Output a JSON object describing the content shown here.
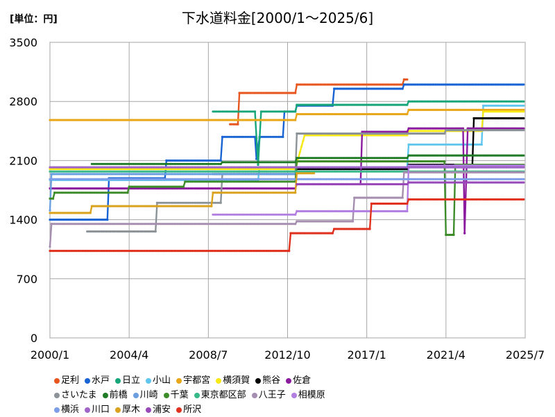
{
  "unit_label": "[単位：円]",
  "chart_data": {
    "type": "line",
    "title": "下水道料金[2000/1～2025/6]",
    "xlabel": "",
    "ylabel": "",
    "ylim": [
      0,
      3500
    ],
    "yticks": [
      0,
      700,
      1400,
      2100,
      2800,
      3500
    ],
    "xlim": [
      "2000/1",
      "2025/7"
    ],
    "xticks": [
      "2000/1",
      "2004/4",
      "2008/7",
      "2012/10",
      "2017/1",
      "2021/4",
      "2025/7"
    ],
    "grid": true,
    "legend_position": "bottom",
    "series": [
      {
        "name": "足利",
        "color": "#e8561f",
        "points": [
          [
            "2009/9",
            2530
          ],
          [
            "2010/2",
            2530
          ],
          [
            "2010/3",
            2900
          ],
          [
            "2013/3",
            2900
          ],
          [
            "2013/4",
            3000
          ],
          [
            "2018/12",
            3000
          ],
          [
            "2019/1",
            3060
          ],
          [
            "2019/3",
            3060
          ]
        ]
      },
      {
        "name": "水戸",
        "color": "#1763d4",
        "points": [
          [
            "2000/1",
            1400
          ],
          [
            "2003/2",
            1400
          ],
          [
            "2003/3",
            1890
          ],
          [
            "2006/3",
            1890
          ],
          [
            "2006/4",
            2100
          ],
          [
            "2009/3",
            2100
          ],
          [
            "2009/4",
            2380
          ],
          [
            "2011/1",
            2380
          ],
          [
            "2011/2",
            2120
          ],
          [
            "2011/4",
            2380
          ],
          [
            "2012/7",
            2380
          ],
          [
            "2012/8",
            2680
          ],
          [
            "2013/3",
            2680
          ],
          [
            "2013/4",
            2750
          ],
          [
            "2015/3",
            2750
          ],
          [
            "2015/4",
            2950
          ],
          [
            "2018/12",
            2950
          ],
          [
            "2019/1",
            3000
          ],
          [
            "2025/6",
            3000
          ]
        ]
      },
      {
        "name": "日立",
        "color": "#17a57a",
        "points": [
          [
            "2008/10",
            2680
          ],
          [
            "2011/1",
            2680
          ],
          [
            "2011/3",
            2050
          ],
          [
            "2011/5",
            2680
          ],
          [
            "2013/3",
            2680
          ],
          [
            "2013/4",
            2760
          ],
          [
            "2019/3",
            2760
          ],
          [
            "2019/4",
            2800
          ],
          [
            "2025/6",
            2800
          ]
        ]
      },
      {
        "name": "小山",
        "color": "#5ec5ef",
        "points": [
          [
            "2000/1",
            1870
          ],
          [
            "2011/3",
            1870
          ],
          [
            "2011/4",
            2020
          ],
          [
            "2019/3",
            2020
          ],
          [
            "2019/4",
            2290
          ],
          [
            "2023/3",
            2290
          ],
          [
            "2023/4",
            2750
          ],
          [
            "2025/6",
            2750
          ]
        ]
      },
      {
        "name": "宇都宮",
        "color": "#e8a619",
        "points": [
          [
            "2000/1",
            2580
          ],
          [
            "2013/3",
            2580
          ],
          [
            "2013/4",
            2650
          ],
          [
            "2019/3",
            2650
          ],
          [
            "2019/4",
            2700
          ],
          [
            "2025/6",
            2700
          ]
        ]
      },
      {
        "name": "横須賀",
        "color": "#f7e816",
        "points": [
          [
            "2000/1",
            2000
          ],
          [
            "2013/3",
            2000
          ],
          [
            "2013/9",
            2400
          ],
          [
            "2019/3",
            2400
          ],
          [
            "2019/4",
            2450
          ],
          [
            "2023/3",
            2450
          ],
          [
            "2023/4",
            2680
          ],
          [
            "2025/6",
            2680
          ]
        ]
      },
      {
        "name": "熊谷",
        "color": "#000000",
        "points": [
          [
            "2008/10",
            1940
          ],
          [
            "2013/3",
            1940
          ],
          [
            "2013/4",
            2000
          ],
          [
            "2019/3",
            2000
          ],
          [
            "2019/4",
            2050
          ],
          [
            "2022/9",
            2050
          ],
          [
            "2022/10",
            2600
          ],
          [
            "2025/6",
            2600
          ]
        ]
      },
      {
        "name": "佐倉",
        "color": "#8b1a9e",
        "points": [
          [
            "2000/1",
            1770
          ],
          [
            "2013/3",
            1770
          ],
          [
            "2013/4",
            1820
          ],
          [
            "2016/9",
            1820
          ],
          [
            "2016/10",
            2440
          ],
          [
            "2019/3",
            2440
          ],
          [
            "2019/4",
            2480
          ],
          [
            "2022/3",
            2480
          ],
          [
            "2022/4",
            1240
          ],
          [
            "2022/6",
            2480
          ],
          [
            "2025/6",
            2480
          ]
        ]
      },
      {
        "name": "さいたま",
        "color": "#8c9398",
        "points": [
          [
            "2002/1",
            1260
          ],
          [
            "2005/9",
            1260
          ],
          [
            "2005/10",
            1600
          ],
          [
            "2009/3",
            1600
          ],
          [
            "2009/4",
            1940
          ],
          [
            "2013/3",
            1940
          ],
          [
            "2013/4",
            2420
          ],
          [
            "2021/3",
            2420
          ],
          [
            "2021/4",
            2460
          ],
          [
            "2025/6",
            2460
          ]
        ]
      },
      {
        "name": "前橋",
        "color": "#1e7a24",
        "points": [
          [
            "2002/4",
            2060
          ],
          [
            "2009/3",
            2060
          ],
          [
            "2009/4",
            2080
          ],
          [
            "2013/3",
            2080
          ],
          [
            "2013/4",
            2130
          ],
          [
            "2019/3",
            2130
          ],
          [
            "2019/4",
            2160
          ],
          [
            "2025/6",
            2160
          ]
        ]
      },
      {
        "name": "川崎",
        "color": "#6b9fe0",
        "points": [
          [
            "2000/1",
            1510
          ],
          [
            "2000/2",
            1940
          ],
          [
            "2000/3",
            1940
          ],
          [
            "2013/3",
            1940
          ],
          [
            "2013/4",
            2020
          ],
          [
            "2025/6",
            2020
          ]
        ]
      },
      {
        "name": "千葉",
        "color": "#3d8c2a",
        "points": [
          [
            "2000/1",
            1650
          ],
          [
            "2000/3",
            1650
          ],
          [
            "2000/4",
            1720
          ],
          [
            "2004/3",
            1720
          ],
          [
            "2004/4",
            1790
          ],
          [
            "2007/3",
            1790
          ],
          [
            "2007/4",
            1850
          ],
          [
            "2013/3",
            1850
          ],
          [
            "2013/4",
            2090
          ],
          [
            "2021/3",
            2090
          ],
          [
            "2021/4",
            1220
          ],
          [
            "2021/9",
            1220
          ],
          [
            "2021/10",
            2050
          ],
          [
            "2025/6",
            2050
          ]
        ]
      },
      {
        "name": "東京都区部",
        "color": "#38b98a",
        "points": [
          [
            "2000/1",
            1970
          ],
          [
            "2025/6",
            1970
          ]
        ]
      },
      {
        "name": "八王子",
        "color": "#a68eb0",
        "points": [
          [
            "2000/1",
            1080
          ],
          [
            "2000/2",
            1350
          ],
          [
            "2013/3",
            1350
          ],
          [
            "2013/4",
            1380
          ],
          [
            "2016/4",
            1380
          ],
          [
            "2016/5",
            1660
          ],
          [
            "2018/12",
            1660
          ],
          [
            "2019/1",
            1960
          ],
          [
            "2025/6",
            1960
          ]
        ]
      },
      {
        "name": "相模原",
        "color": "#b27fe0",
        "points": [
          [
            "2008/10",
            1460
          ],
          [
            "2013/3",
            1460
          ],
          [
            "2013/4",
            1500
          ],
          [
            "2019/3",
            1500
          ],
          [
            "2019/4",
            2040
          ],
          [
            "2025/6",
            2040
          ]
        ]
      },
      {
        "name": "横浜",
        "color": "#7e9de8",
        "points": [
          [
            "2000/1",
            1880
          ],
          [
            "2025/6",
            1880
          ]
        ]
      },
      {
        "name": "川口",
        "color": "#a064c8",
        "points": [
          [
            "2000/1",
            2020
          ],
          [
            "2025/6",
            2020
          ]
        ]
      },
      {
        "name": "厚木",
        "color": "#dba21e",
        "points": [
          [
            "2000/1",
            1480
          ],
          [
            "2002/3",
            1480
          ],
          [
            "2002/4",
            1560
          ],
          [
            "2008/9",
            1560
          ],
          [
            "2008/10",
            1720
          ],
          [
            "2013/3",
            1720
          ],
          [
            "2013/4",
            1950
          ],
          [
            "2014/3",
            1950
          ]
        ]
      },
      {
        "name": "浦安",
        "color": "#9848b8",
        "points": [
          [
            "2013/4",
            1820
          ],
          [
            "2019/3",
            1820
          ],
          [
            "2019/4",
            1840
          ],
          [
            "2025/6",
            1840
          ]
        ]
      },
      {
        "name": "所沢",
        "color": "#e0301e",
        "points": [
          [
            "2000/1",
            1030
          ],
          [
            "2012/11",
            1030
          ],
          [
            "2012/12",
            1240
          ],
          [
            "2015/3",
            1240
          ],
          [
            "2015/4",
            1290
          ],
          [
            "2017/3",
            1290
          ],
          [
            "2017/4",
            1590
          ],
          [
            "2019/3",
            1590
          ],
          [
            "2019/4",
            1640
          ],
          [
            "2025/6",
            1640
          ]
        ]
      }
    ]
  }
}
